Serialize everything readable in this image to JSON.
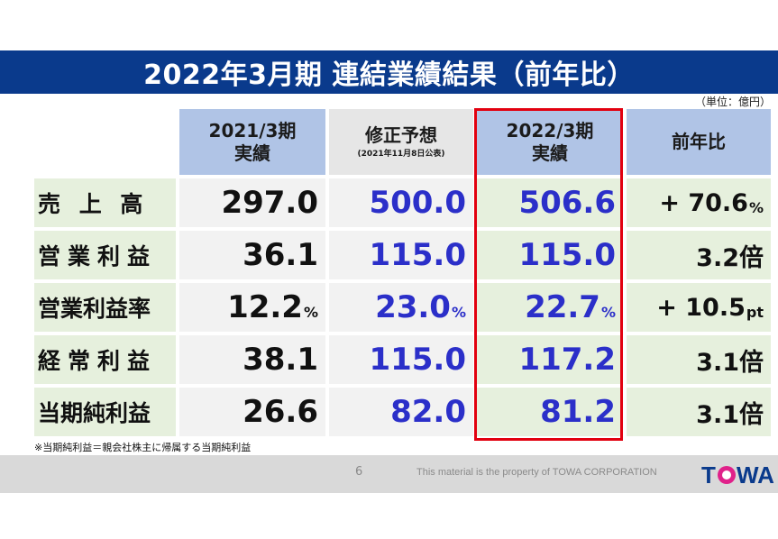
{
  "title": "2022年3月期 連結業績結果（前年比）",
  "unit": "（単位：億円）",
  "headers": {
    "col1": {
      "line1": "2021/3期",
      "line2": "実績"
    },
    "col2": {
      "line1": "修正予想",
      "line2": "(2021年11月8日公表)"
    },
    "col3": {
      "line1": "2022/3期",
      "line2": "実績"
    },
    "col4": {
      "line1": "前年比"
    }
  },
  "rows": [
    {
      "label": "売 上 高",
      "c1": "297.0",
      "c2": "500.0",
      "c3": "506.6",
      "c4": "+ 70.6",
      "c4_unit": "%"
    },
    {
      "label": "営業利益",
      "c1": "36.1",
      "c2": "115.0",
      "c3": "115.0",
      "c4": "3.2倍"
    },
    {
      "label": "営業利益率",
      "c1": "12.2",
      "c1_unit": "%",
      "c2": "23.0",
      "c2_unit": "%",
      "c3": "22.7",
      "c3_unit": "%",
      "c4": "+ 10.5",
      "c4_unit": "pt"
    },
    {
      "label": "経常利益",
      "c1": "38.1",
      "c2": "115.0",
      "c3": "117.2",
      "c4": "3.1倍"
    },
    {
      "label": "当期純利益",
      "c1": "26.6",
      "c2": "82.0",
      "c3": "81.2",
      "c4": "3.1倍"
    }
  ],
  "footnote": "※当期純利益＝親会社株主に帰属する当期純利益",
  "footer": {
    "page": "6",
    "property": "This material is the property of TOWA CORPORATION",
    "logo_text": "TOWA"
  },
  "colors": {
    "title_bg": "#0a3a8c",
    "highlight": "#e2000f",
    "value_blue": "#2b2fc9",
    "label_bg": "#e6f0dd"
  }
}
